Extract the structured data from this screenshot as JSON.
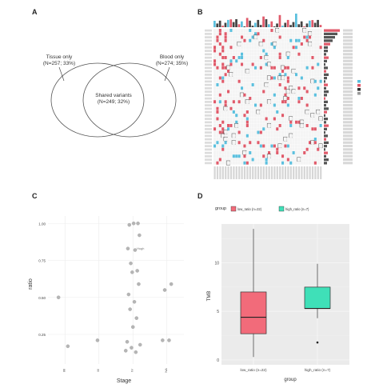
{
  "panels": {
    "a": "A",
    "b": "B",
    "c": "C",
    "d": "D"
  },
  "venn": {
    "left_label_1": "Tissue only",
    "left_label_2": "(N=257; 33%)",
    "right_label_1": "Blood only",
    "right_label_2": "(N=274; 35%)",
    "center_label_1": "Shared variants",
    "center_label_2": "(N=249; 32%)"
  },
  "heatmap": {
    "rows": 40,
    "cols": 40,
    "colors": {
      "red": "#e05a6a",
      "blue": "#5bc0de",
      "box": "#555555",
      "dark": "#333333"
    }
  },
  "chart_data": [
    {
      "type": "scatter",
      "panel": "C",
      "xlabel": "Stage",
      "ylabel": "ratio",
      "categories": [
        "I/II",
        "III",
        "IV",
        "NA"
      ],
      "yticks": [
        0.25,
        0.5,
        0.75,
        1.0
      ],
      "ylim": [
        0.05,
        1.05
      ],
      "annotation": "Hugh",
      "points": [
        {
          "x": "I/II",
          "y": 0.5
        },
        {
          "x": "I/II",
          "y": 0.17
        },
        {
          "x": "III",
          "y": 0.21
        },
        {
          "x": "IV",
          "y": 1.0
        },
        {
          "x": "IV",
          "y": 0.99
        },
        {
          "x": "IV",
          "y": 1.0
        },
        {
          "x": "IV",
          "y": 0.92
        },
        {
          "x": "IV",
          "y": 0.83
        },
        {
          "x": "IV",
          "y": 0.82
        },
        {
          "x": "IV",
          "y": 0.73
        },
        {
          "x": "IV",
          "y": 0.68
        },
        {
          "x": "IV",
          "y": 0.67
        },
        {
          "x": "IV",
          "y": 0.59
        },
        {
          "x": "IV",
          "y": 0.52
        },
        {
          "x": "IV",
          "y": 0.47
        },
        {
          "x": "IV",
          "y": 0.42
        },
        {
          "x": "IV",
          "y": 0.36
        },
        {
          "x": "IV",
          "y": 0.3
        },
        {
          "x": "IV",
          "y": 0.2
        },
        {
          "x": "IV",
          "y": 0.18
        },
        {
          "x": "IV",
          "y": 0.14
        },
        {
          "x": "IV",
          "y": 0.13
        },
        {
          "x": "IV",
          "y": 0.16
        },
        {
          "x": "NA",
          "y": 0.59
        },
        {
          "x": "NA",
          "y": 0.55
        },
        {
          "x": "NA",
          "y": 0.21
        },
        {
          "x": "NA",
          "y": 0.21
        }
      ]
    },
    {
      "type": "box",
      "panel": "D",
      "xlabel": "group",
      "ylabel": "TMB",
      "legend_title": "group",
      "categories": [
        "low_ratio (n=22)",
        "high_ratio (n=7)"
      ],
      "colors": [
        "#f26b7a",
        "#3fe0b8"
      ],
      "yticks": [
        0,
        5,
        10
      ],
      "ylim": [
        -0.5,
        14
      ],
      "boxes": [
        {
          "name": "low_ratio (n=22)",
          "min": 0.3,
          "q1": 2.7,
          "median": 4.4,
          "q3": 7.0,
          "max": 13.5,
          "outliers": []
        },
        {
          "name": "high_ratio (n=7)",
          "min": 4.3,
          "q1": 5.3,
          "median": 5.3,
          "q3": 7.5,
          "max": 9.9,
          "outliers": [
            1.8
          ]
        }
      ]
    }
  ]
}
